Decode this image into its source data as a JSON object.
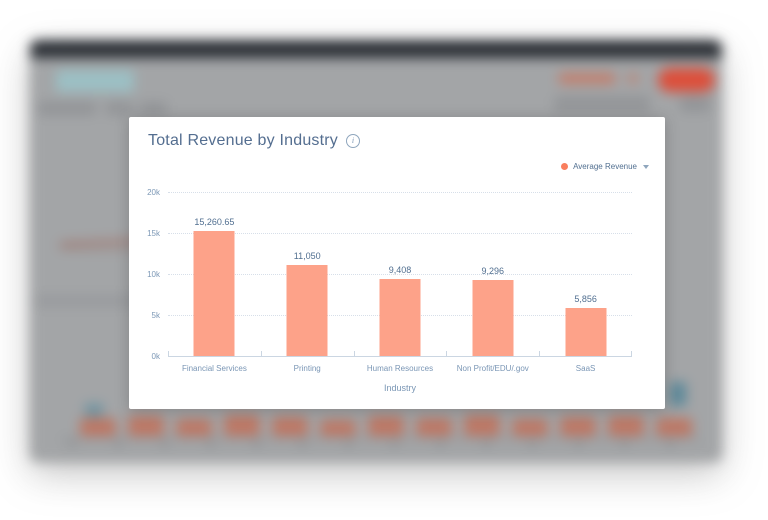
{
  "window": {
    "backdrop_colors": {
      "page_background": "#a3a5a7",
      "nav_bar": "#2c3036",
      "primary_button": "#dc4f3b",
      "accent_teal": "#9cc0c5",
      "blurred_bar_series": "#c26e58",
      "link_orange": "#de5f3c"
    }
  },
  "card": {
    "title": "Total Revenue by Industry",
    "info_glyph": "i",
    "legend": {
      "label": "Average Revenue",
      "dot_color": "#f97e5e"
    }
  },
  "chart_data": {
    "type": "bar",
    "title": "Total Revenue by Industry",
    "series_name": "Average Revenue",
    "categories": [
      "Financial Services",
      "Printing",
      "Human Resources",
      "Non Profit/EDU/.gov",
      "SaaS"
    ],
    "values": [
      15260.65,
      11050,
      9408,
      9296,
      5856
    ],
    "value_labels": [
      "15,260.65",
      "11,050",
      "9,408",
      "9,296",
      "5,856"
    ],
    "xlabel": "Industry",
    "ylabel": "",
    "ylim": [
      0,
      20000
    ],
    "ytick_step": 5000,
    "ytick_labels": [
      "0k",
      "5k",
      "10k",
      "15k",
      "20k"
    ],
    "grid": "horizontal-dotted",
    "legend_position": "top-right",
    "bar_color": "#fda289",
    "value_label_color": "#516f90",
    "axis_color": "#cbd6e2",
    "tick_label_color": "#7c98b6"
  }
}
